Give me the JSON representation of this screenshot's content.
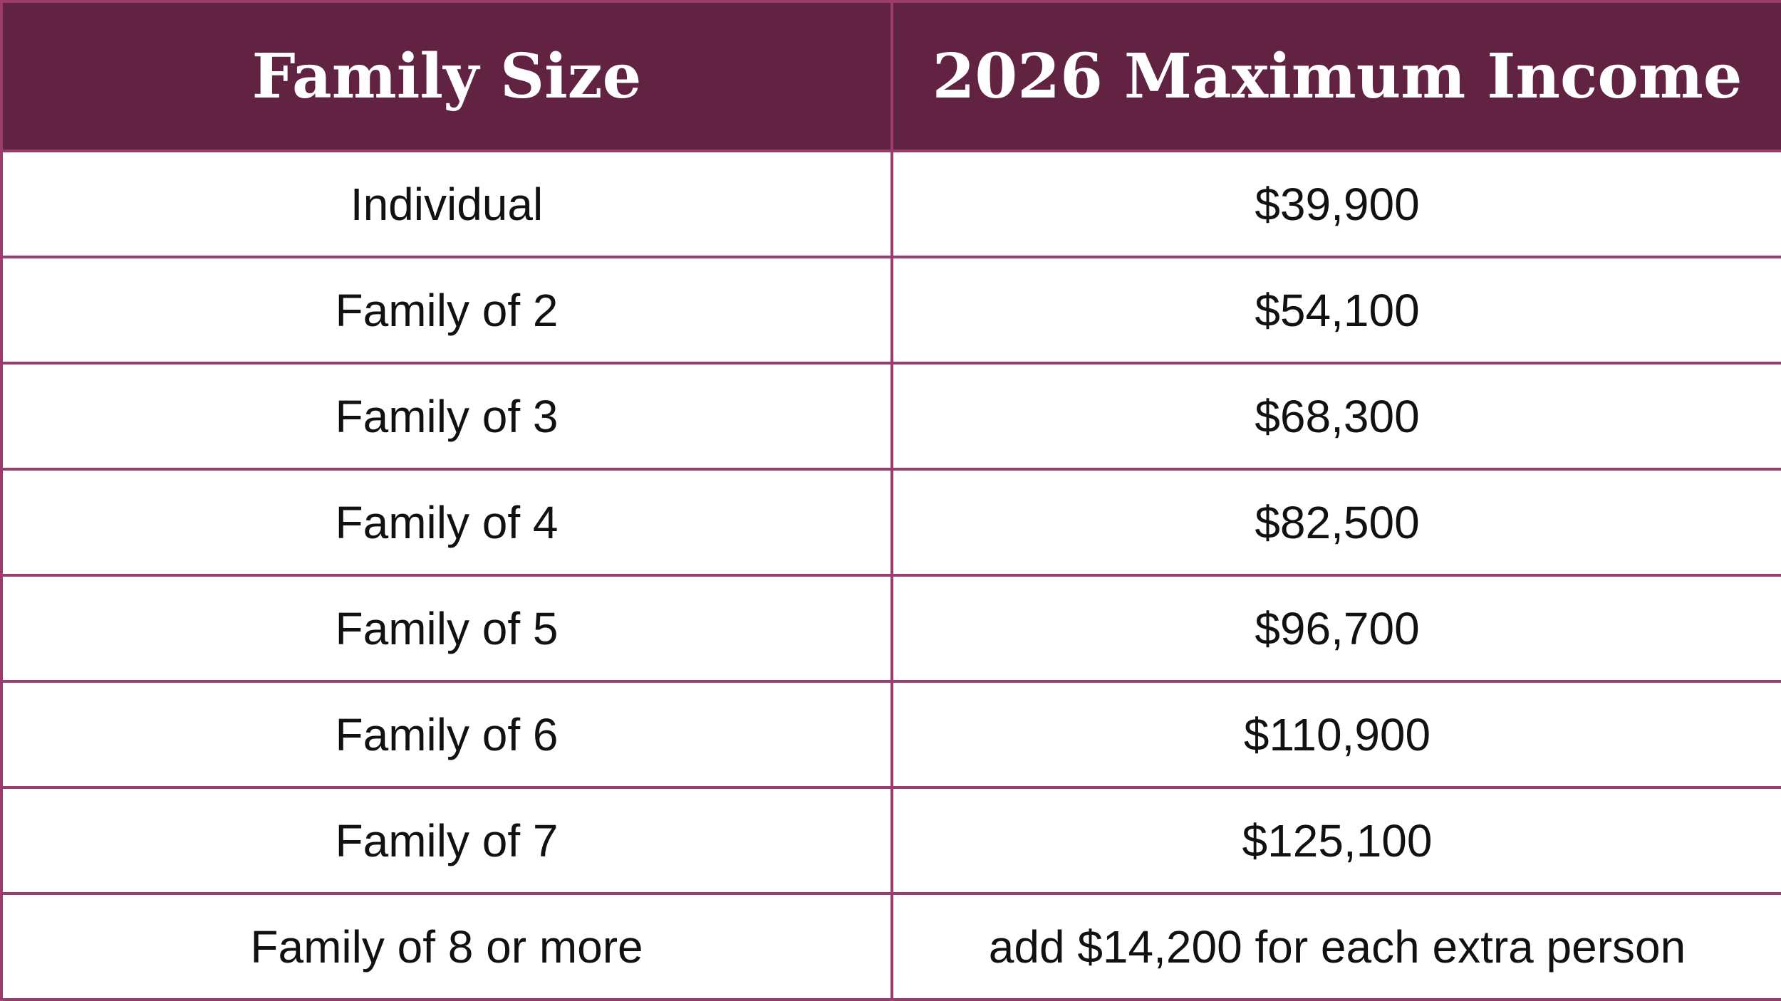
{
  "table": {
    "header": [
      "Family Size",
      "2026 Maximum Income"
    ],
    "rows": [
      [
        "Individual",
        "$39,900"
      ],
      [
        "Family of 2",
        "$54,100"
      ],
      [
        "Family of 3",
        "$68,300"
      ],
      [
        "Family of 4",
        "$82,500"
      ],
      [
        "Family of 5",
        "$96,700"
      ],
      [
        "Family of 6",
        "$110,900"
      ],
      [
        "Family of 7",
        "$125,100"
      ],
      [
        "Family of 8 or more",
        "add $14,200 for each extra person"
      ]
    ]
  }
}
